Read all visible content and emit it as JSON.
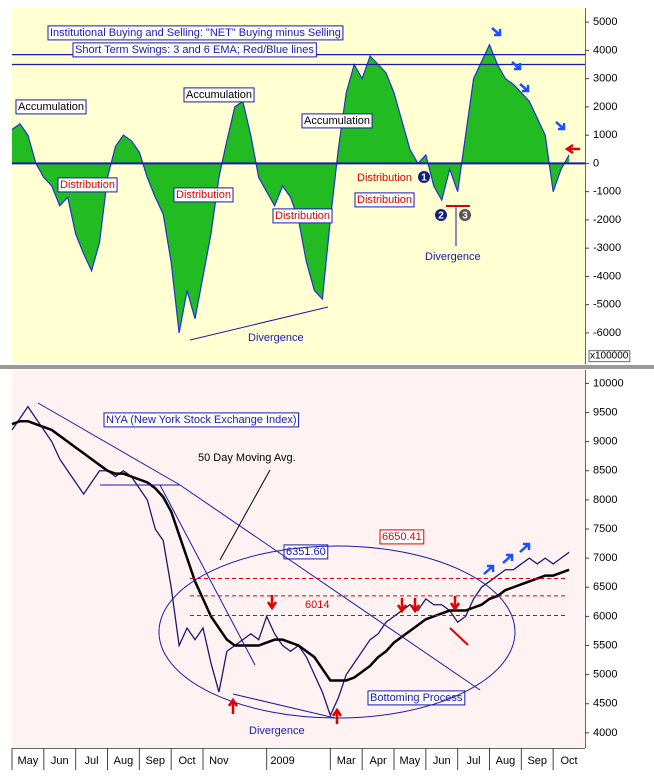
{
  "chart_data": [
    {
      "type": "area",
      "annotations": [
        "Institutional Buying and Selling: \"NET\" Buying minus Selling",
        "Short Term Swings: 3 and 6 EMA; Red/Blue lines",
        "Accumulation",
        "Accumulation",
        "Accumulation",
        "Distribution",
        "Distribution",
        "Distribution",
        "Distribution",
        "Distribution",
        "Divergence",
        "Divergence",
        "1",
        "2",
        "3"
      ],
      "x": [
        0,
        0.25,
        0.5,
        0.75,
        1,
        1.25,
        1.5,
        1.75,
        2,
        2.25,
        2.5,
        2.75,
        3,
        3.25,
        3.5,
        3.75,
        4,
        4.25,
        4.5,
        4.75,
        5,
        5.25,
        5.5,
        5.75,
        6,
        6.25,
        6.5,
        6.75,
        7,
        7.25,
        7.5,
        7.75,
        8,
        8.25,
        8.5,
        8.75,
        9,
        9.25,
        9.5,
        9.75,
        10,
        10.25,
        10.5,
        10.75,
        11,
        11.25,
        11.5,
        11.75,
        12,
        12.25,
        12.5,
        12.75,
        13,
        13.25,
        13.5,
        13.75,
        14,
        14.25,
        14.5,
        14.75,
        15,
        15.25,
        15.5,
        15.75,
        16,
        16.25,
        16.5,
        16.75,
        17,
        17.25,
        17.5
      ],
      "xlim": [
        0,
        18
      ],
      "series": [
        {
          "color": "#22bb22",
          "values": [
            1200,
            1400,
            1000,
            0,
            -500,
            -800,
            -1500,
            -1200,
            -2500,
            -3200,
            -3800,
            -2800,
            -500,
            600,
            1000,
            800,
            400,
            -500,
            -1200,
            -1800,
            -3500,
            -6000,
            -4500,
            -5500,
            -4000,
            -2500,
            -500,
            800,
            2000,
            2200,
            1000,
            -500,
            -1000,
            -1500,
            -800,
            -1200,
            -2000,
            -3500,
            -4500,
            -4800,
            -2000,
            500,
            2500,
            3500,
            3000,
            3800,
            3500,
            3200,
            2500,
            1500,
            500,
            0,
            300,
            -800,
            -1300,
            -200,
            -1000,
            1000,
            3000,
            3600,
            4200,
            3500,
            3000,
            2800,
            2500,
            2200,
            1600,
            1000,
            -1000,
            -200,
            300
          ]
        }
      ],
      "ylim": [
        -7100,
        5500
      ],
      "yticks": [
        5000,
        4000,
        3000,
        2000,
        1000,
        0,
        -1000,
        -2000,
        -3000,
        -4000,
        -5000,
        -6000
      ],
      "y_unit_label": "x100000",
      "reference_lines": [
        3850,
        3500,
        0
      ]
    },
    {
      "type": "line",
      "annotations": [
        "NYA (New York Stock Exchange Index)",
        "50 Day Moving Avg.",
        "Bottoming Process",
        "Divergence"
      ],
      "x": [
        0,
        0.25,
        0.5,
        0.75,
        1,
        1.25,
        1.5,
        1.75,
        2,
        2.25,
        2.5,
        2.75,
        3,
        3.25,
        3.5,
        3.75,
        4,
        4.25,
        4.5,
        4.75,
        5,
        5.25,
        5.5,
        5.75,
        6,
        6.25,
        6.5,
        6.75,
        7,
        7.25,
        7.5,
        7.75,
        8,
        8.25,
        8.5,
        8.75,
        9,
        9.25,
        9.5,
        9.75,
        10,
        10.25,
        10.5,
        10.75,
        11,
        11.25,
        11.5,
        11.75,
        12,
        12.25,
        12.5,
        12.75,
        13,
        13.25,
        13.5,
        13.75,
        14,
        14.25,
        14.5,
        14.75,
        15,
        15.25,
        15.5,
        15.75,
        16,
        16.25,
        16.5,
        16.75,
        17,
        17.25,
        17.5
      ],
      "xlim": [
        0,
        18
      ],
      "xticks": [
        {
          "value": 0,
          "label": "May"
        },
        {
          "value": 1,
          "label": "Jun"
        },
        {
          "value": 2,
          "label": "Jul"
        },
        {
          "value": 3,
          "label": "Aug"
        },
        {
          "value": 4,
          "label": "Sep"
        },
        {
          "value": 5,
          "label": "Oct"
        },
        {
          "value": 6,
          "label": "Nov"
        },
        {
          "value": 8,
          "label": "2009"
        },
        {
          "value": 10,
          "label": "Mar"
        },
        {
          "value": 11,
          "label": "Apr"
        },
        {
          "value": 12,
          "label": "May"
        },
        {
          "value": 13,
          "label": "Jun"
        },
        {
          "value": 14,
          "label": "Jul"
        },
        {
          "value": 15,
          "label": "Aug"
        },
        {
          "value": 16,
          "label": "Sep"
        },
        {
          "value": 17,
          "label": "Oct"
        }
      ],
      "series": [
        {
          "color": "#1a1a6e",
          "values": [
            9200,
            9400,
            9600,
            9400,
            9200,
            9000,
            8700,
            8500,
            8300,
            8100,
            8300,
            8500,
            8500,
            8400,
            8500,
            8400,
            8200,
            8000,
            7500,
            7300,
            6500,
            5500,
            5800,
            5600,
            5800,
            5200,
            4700,
            5400,
            5500,
            5600,
            5700,
            5600,
            6000,
            5700,
            5500,
            5400,
            5500,
            5300,
            5000,
            4700,
            4300,
            4600,
            5000,
            5200,
            5400,
            5600,
            5700,
            5900,
            6000,
            6100,
            6200,
            6100,
            6300,
            6200,
            6200,
            6100,
            5900,
            6000,
            6300,
            6500,
            6600,
            6700,
            6800,
            6800,
            6900,
            7000,
            6900,
            7000,
            6900,
            7000,
            7100
          ]
        },
        {
          "color": "#000000",
          "values": [
            9300,
            9350,
            9350,
            9300,
            9250,
            9200,
            9100,
            9000,
            8900,
            8800,
            8700,
            8600,
            8500,
            8450,
            8450,
            8400,
            8350,
            8300,
            8200,
            8050,
            7800,
            7400,
            7000,
            6600,
            6300,
            6000,
            5800,
            5600,
            5500,
            5500,
            5500,
            5500,
            5550,
            5600,
            5600,
            5550,
            5500,
            5400,
            5300,
            5100,
            4900,
            4900,
            4900,
            4950,
            5050,
            5150,
            5300,
            5400,
            5550,
            5650,
            5750,
            5850,
            5950,
            6000,
            6050,
            6100,
            6100,
            6100,
            6150,
            6200,
            6300,
            6350,
            6450,
            6500,
            6550,
            6600,
            6650,
            6700,
            6700,
            6750,
            6800
          ]
        }
      ],
      "ylim": [
        3740,
        10230
      ],
      "yticks": [
        10000,
        9500,
        9000,
        8500,
        8000,
        7500,
        7000,
        6500,
        6000,
        5500,
        5000,
        4500,
        4000
      ],
      "reference_levels": [
        6650.41,
        6351.6,
        6014
      ],
      "reference_level_labels": [
        "6650.41",
        "6351.60",
        "6014"
      ]
    }
  ]
}
